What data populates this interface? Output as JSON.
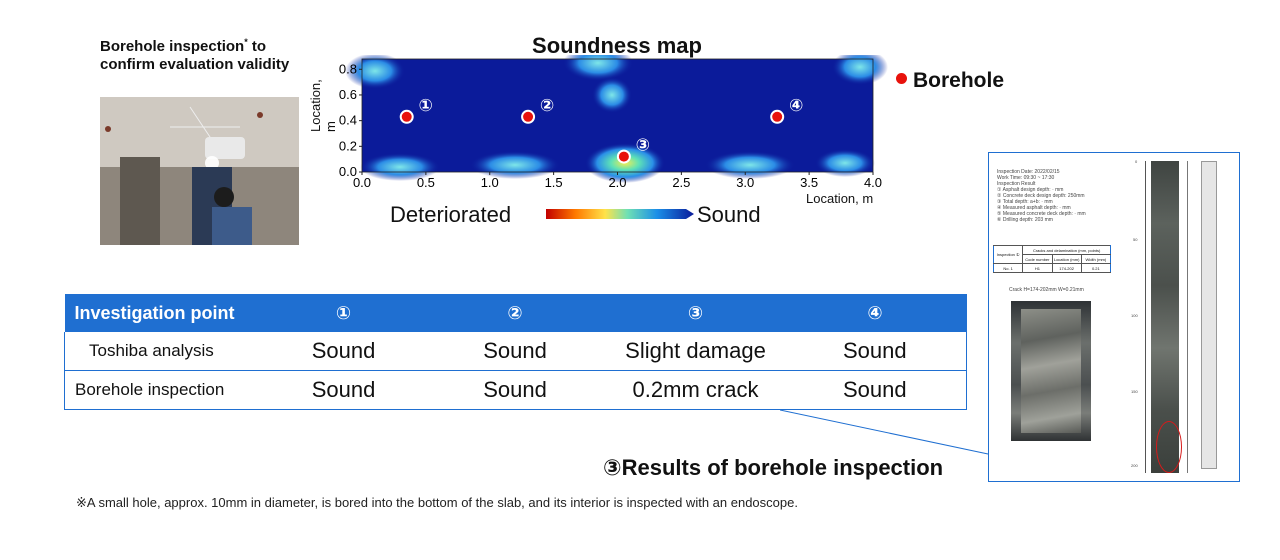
{
  "photo_caption": {
    "text": "Borehole inspection",
    "sup": "*",
    "text2": " to confirm evaluation validity"
  },
  "map": {
    "title": "Soundness map",
    "ylabel": "Location, m",
    "xlabel": "Location, m",
    "legend_low": "Deteriorated",
    "legend_high": "Sound",
    "borehole_label": "Borehole",
    "x_ticks": [
      "0.0",
      "0.5",
      "1.0",
      "1.5",
      "2.0",
      "2.5",
      "3.0",
      "3.5",
      "4.0"
    ],
    "y_ticks": [
      "0.0",
      "0.2",
      "0.4",
      "0.6",
      "0.8"
    ],
    "boreholes": [
      {
        "label": "①",
        "x": 0.35,
        "y": 0.43
      },
      {
        "label": "②",
        "x": 1.3,
        "y": 0.43
      },
      {
        "label": "③",
        "x": 2.05,
        "y": 0.12
      },
      {
        "label": "④",
        "x": 3.25,
        "y": 0.43
      }
    ],
    "colors": {
      "sound": "#0b1b9a",
      "deteriorated": "#d40000",
      "marker": "#e8120c"
    }
  },
  "table": {
    "header": [
      "Investigation point",
      "①",
      "②",
      "③",
      "④"
    ],
    "rows": [
      {
        "label": "Toshiba analysis",
        "values": [
          "Sound",
          "Sound",
          "Slight damage",
          "Sound"
        ]
      },
      {
        "label": "Borehole inspection",
        "values": [
          "Sound",
          "Sound",
          "0.2mm crack",
          "Sound"
        ]
      }
    ]
  },
  "results_caption": "③Results of borehole inspection",
  "footnote": "※A small hole, approx. 10mm in diameter, is bored into the bottom of the slab, and its interior is inspected with an endoscope.",
  "report": {
    "lines": [
      "Inspection Date: 2022/02/15",
      "Work Time: 09:30 ~ 17:30",
      "Inspection Result",
      "① Asphalt design depth:            · mm",
      "② Concrete deck design depth:   250mm",
      "③ Total depth: a+b:               · mm",
      "④ Measured asphalt depth:        · mm",
      "⑤ Measured concrete deck depth:  · mm",
      "⑥ Drilling depth:               203 mm"
    ],
    "mini_table": {
      "title": "Cracks and delamination (mm, points)",
      "row_head": "Inspection ①",
      "cols": [
        "Code number",
        "Location (mm)",
        "Width (mm)"
      ],
      "row_label": "No. 1",
      "row_values": [
        "H1",
        "174-202",
        "0.21"
      ]
    },
    "crack_label": "Crack  H=174-202mm W=0.21mm",
    "scale_labels": [
      "0",
      "50",
      "100",
      "150",
      "200"
    ]
  }
}
